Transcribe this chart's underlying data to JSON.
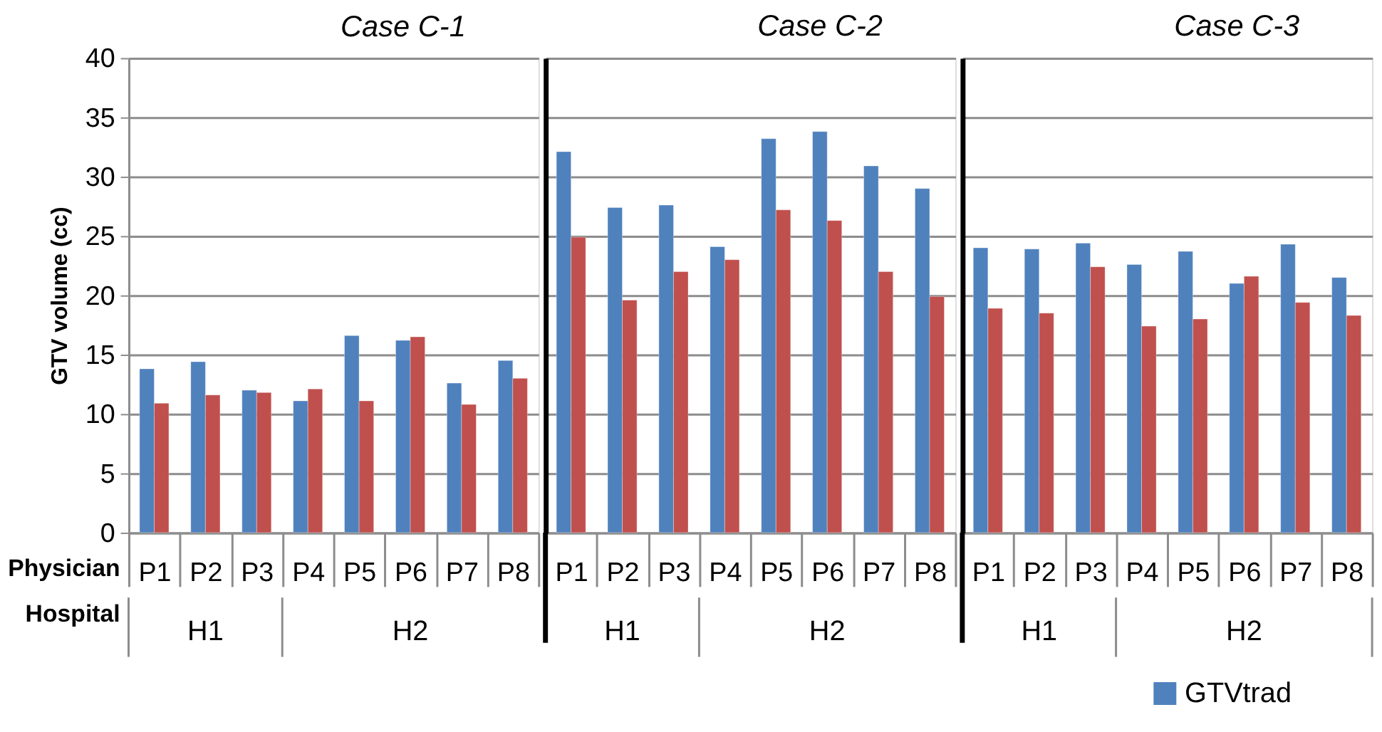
{
  "chart_data": [
    {
      "type": "bar",
      "title": "Case C-1",
      "ylabel": "GTV volume (cc)",
      "categories": [
        "P1",
        "P2",
        "P3",
        "P4",
        "P5",
        "P6",
        "P7",
        "P8"
      ],
      "series": [
        {
          "color": "#4f81bd",
          "values": [
            13.8,
            14.4,
            12.0,
            11.1,
            16.6,
            16.2,
            12.6,
            14.5
          ]
        },
        {
          "color": "#c0504d",
          "values": [
            10.9,
            11.6,
            11.8,
            12.1,
            11.1,
            16.5,
            10.8,
            13.0
          ]
        }
      ],
      "ylim": [
        0,
        40
      ],
      "yticks": [
        0,
        5,
        10,
        15,
        20,
        25,
        30,
        35,
        40
      ],
      "grid": "y",
      "annotations": [
        "Physician",
        "Hospital",
        "H1",
        "H2"
      ]
    },
    {
      "type": "bar",
      "title": "Case C-2",
      "categories": [
        "P1",
        "P2",
        "P3",
        "P4",
        "P5",
        "P6",
        "P7",
        "P8"
      ],
      "series": [
        {
          "color": "#4f81bd",
          "values": [
            32.1,
            27.4,
            27.6,
            24.1,
            33.2,
            33.8,
            30.9,
            29.0
          ]
        },
        {
          "color": "#c0504d",
          "values": [
            24.9,
            19.6,
            22.0,
            23.0,
            27.2,
            26.3,
            22.0,
            19.9
          ]
        }
      ],
      "ylim": [
        0,
        40
      ],
      "yticks": [
        0,
        5,
        10,
        15,
        20,
        25,
        30,
        35,
        40
      ],
      "grid": "y",
      "tick_labels": "x",
      "annotations": [
        "H1",
        "H2"
      ]
    },
    {
      "type": "bar",
      "title": "Case C-3",
      "categories": [
        "P1",
        "P2",
        "P3",
        "P4",
        "P5",
        "P6",
        "P7",
        "P8"
      ],
      "series": [
        {
          "name": "GTVtrad",
          "color": "#4f81bd",
          "values": [
            24.0,
            23.9,
            24.4,
            22.6,
            23.7,
            21.0,
            24.3,
            21.5
          ]
        },
        {
          "color": "#c0504d",
          "values": [
            18.9,
            18.5,
            22.4,
            17.4,
            18.0,
            21.6,
            19.4,
            18.3
          ]
        }
      ],
      "ylim": [
        0,
        40
      ],
      "yticks": [
        0,
        5,
        10,
        15,
        20,
        25,
        30,
        35,
        40
      ],
      "grid": "y",
      "tick_labels": "x",
      "legend": "bottom",
      "annotations": [
        "H1",
        "H2"
      ]
    }
  ]
}
